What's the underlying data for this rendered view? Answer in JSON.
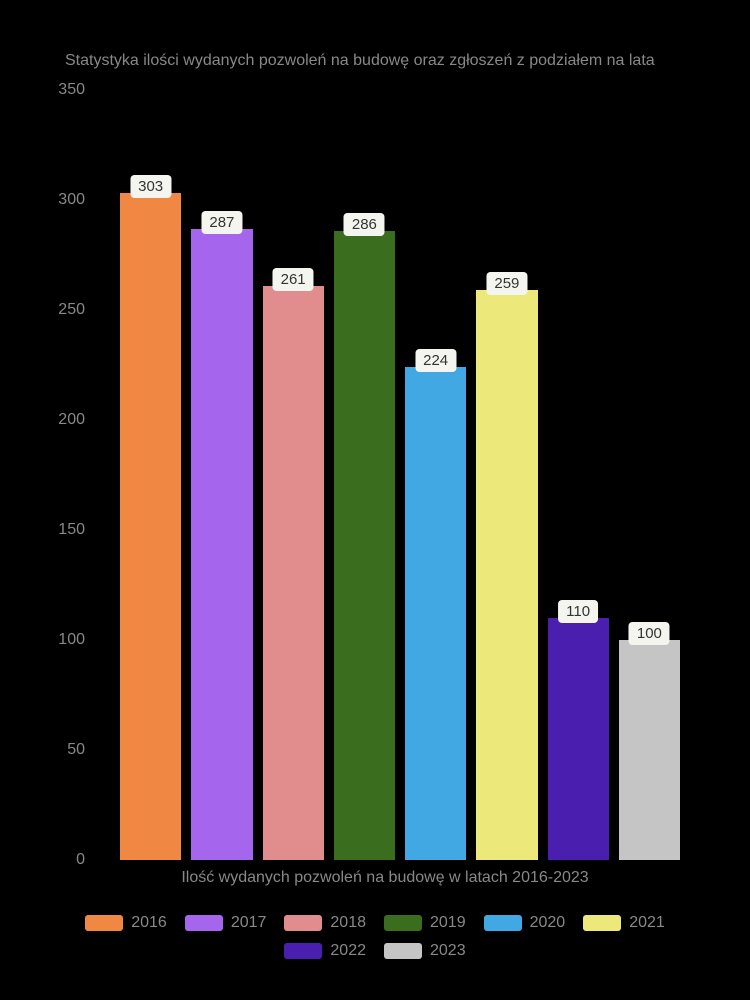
{
  "chart": {
    "type": "bar",
    "title": "Statystyka ilości wydanych pozwoleń na budowę oraz zgłoszeń z podziałem na lata",
    "x_axis_label": "Ilość wydanych pozwoleń na budowę w latach 2016-2023",
    "background_color": "#000000",
    "text_color": "#888888",
    "title_fontsize": 16,
    "label_fontsize": 16,
    "ylim": [
      0,
      350
    ],
    "ytick_step": 50,
    "y_ticks": [
      "0",
      "50",
      "100",
      "150",
      "200",
      "250",
      "300",
      "350"
    ],
    "bar_label_bg": "#f5f5f0",
    "bar_label_color": "#333333",
    "bar_gap": 10,
    "series": [
      {
        "year": "2016",
        "value": 303,
        "color": "#f08843"
      },
      {
        "year": "2017",
        "value": 287,
        "color": "#a565ec"
      },
      {
        "year": "2018",
        "value": 261,
        "color": "#e28d8d"
      },
      {
        "year": "2019",
        "value": 286,
        "color": "#3a6e1e"
      },
      {
        "year": "2020",
        "value": 224,
        "color": "#42a8e4"
      },
      {
        "year": "2021",
        "value": 259,
        "color": "#ece97a"
      },
      {
        "year": "2022",
        "value": 110,
        "color": "#4a1fb0"
      },
      {
        "year": "2023",
        "value": 100,
        "color": "#c5c5c5"
      }
    ]
  }
}
